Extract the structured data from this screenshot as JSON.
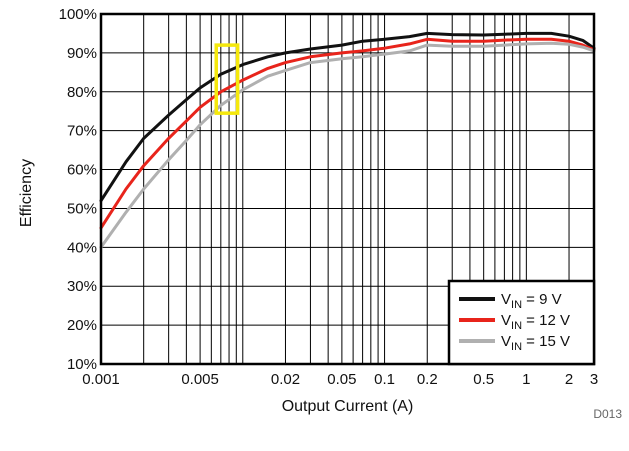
{
  "chart_data": {
    "type": "line",
    "title": "",
    "xlabel": "Output Current (A)",
    "ylabel": "Efficiency",
    "x_scale": "log",
    "xlim": [
      0.001,
      3
    ],
    "ylim": [
      10,
      100
    ],
    "grid": true,
    "legend_position": "bottom-right",
    "figure_id": "D013",
    "x_ticks": [
      {
        "value": 0.001,
        "label": "0.001"
      },
      {
        "value": 0.005,
        "label": "0.005"
      },
      {
        "value": 0.02,
        "label": "0.02"
      },
      {
        "value": 0.05,
        "label": "0.05"
      },
      {
        "value": 0.1,
        "label": "0.1"
      },
      {
        "value": 0.2,
        "label": "0.2"
      },
      {
        "value": 0.5,
        "label": "0.5"
      },
      {
        "value": 1,
        "label": "1"
      },
      {
        "value": 2,
        "label": "2"
      },
      {
        "value": 3,
        "label": "3"
      }
    ],
    "y_ticks": [
      {
        "value": 10,
        "label": "10%"
      },
      {
        "value": 20,
        "label": "20%"
      },
      {
        "value": 30,
        "label": "30%"
      },
      {
        "value": 40,
        "label": "40%"
      },
      {
        "value": 50,
        "label": "50%"
      },
      {
        "value": 60,
        "label": "60%"
      },
      {
        "value": 70,
        "label": "70%"
      },
      {
        "value": 80,
        "label": "80%"
      },
      {
        "value": 90,
        "label": "90%"
      },
      {
        "value": 100,
        "label": "100%"
      }
    ],
    "series": [
      {
        "legend": {
          "prefix": "V",
          "sub": "IN",
          "suffix": " = 9 V"
        },
        "color": "#111111",
        "x": [
          0.001,
          0.0015,
          0.002,
          0.003,
          0.004,
          0.005,
          0.007,
          0.01,
          0.015,
          0.02,
          0.03,
          0.05,
          0.07,
          0.1,
          0.15,
          0.2,
          0.3,
          0.5,
          0.7,
          1,
          1.5,
          2,
          2.5,
          3
        ],
        "y": [
          52,
          62,
          68,
          74,
          78,
          81,
          84.5,
          87,
          89,
          90,
          91,
          92,
          93,
          93.5,
          94.2,
          95,
          94.7,
          94.6,
          94.8,
          95,
          95,
          94.3,
          93.2,
          91.2
        ]
      },
      {
        "legend": {
          "prefix": "V",
          "sub": "IN",
          "suffix": " = 12 V"
        },
        "color": "#e8241b",
        "x": [
          0.001,
          0.0015,
          0.002,
          0.003,
          0.004,
          0.005,
          0.007,
          0.01,
          0.015,
          0.02,
          0.03,
          0.05,
          0.07,
          0.1,
          0.15,
          0.2,
          0.3,
          0.5,
          0.7,
          1,
          1.5,
          2,
          2.5,
          3
        ],
        "y": [
          45,
          55,
          61,
          68,
          72.5,
          76,
          80,
          83,
          86,
          87.5,
          89,
          90,
          90.5,
          91.2,
          92.3,
          93.5,
          93,
          93,
          93.3,
          93.5,
          93.5,
          93,
          92,
          90.8
        ]
      },
      {
        "legend": {
          "prefix": "V",
          "sub": "IN",
          "suffix": " = 15 V"
        },
        "color": "#b0b0b0",
        "x": [
          0.001,
          0.0015,
          0.002,
          0.003,
          0.004,
          0.005,
          0.007,
          0.01,
          0.015,
          0.02,
          0.03,
          0.05,
          0.07,
          0.1,
          0.15,
          0.2,
          0.3,
          0.5,
          0.7,
          1,
          1.5,
          2,
          2.5,
          3
        ],
        "y": [
          40,
          49,
          55,
          62.5,
          67.5,
          71.5,
          76.5,
          80.5,
          84,
          85.5,
          87.5,
          88.5,
          89,
          89.7,
          90.5,
          92,
          91.7,
          91.7,
          92,
          92.3,
          92.5,
          92.2,
          91.5,
          90.5
        ]
      }
    ],
    "annotations": [
      {
        "type": "highlight-box",
        "color": "#f5e80c",
        "x_range": [
          0.0065,
          0.0092
        ],
        "y_range": [
          74.5,
          92
        ]
      }
    ]
  }
}
